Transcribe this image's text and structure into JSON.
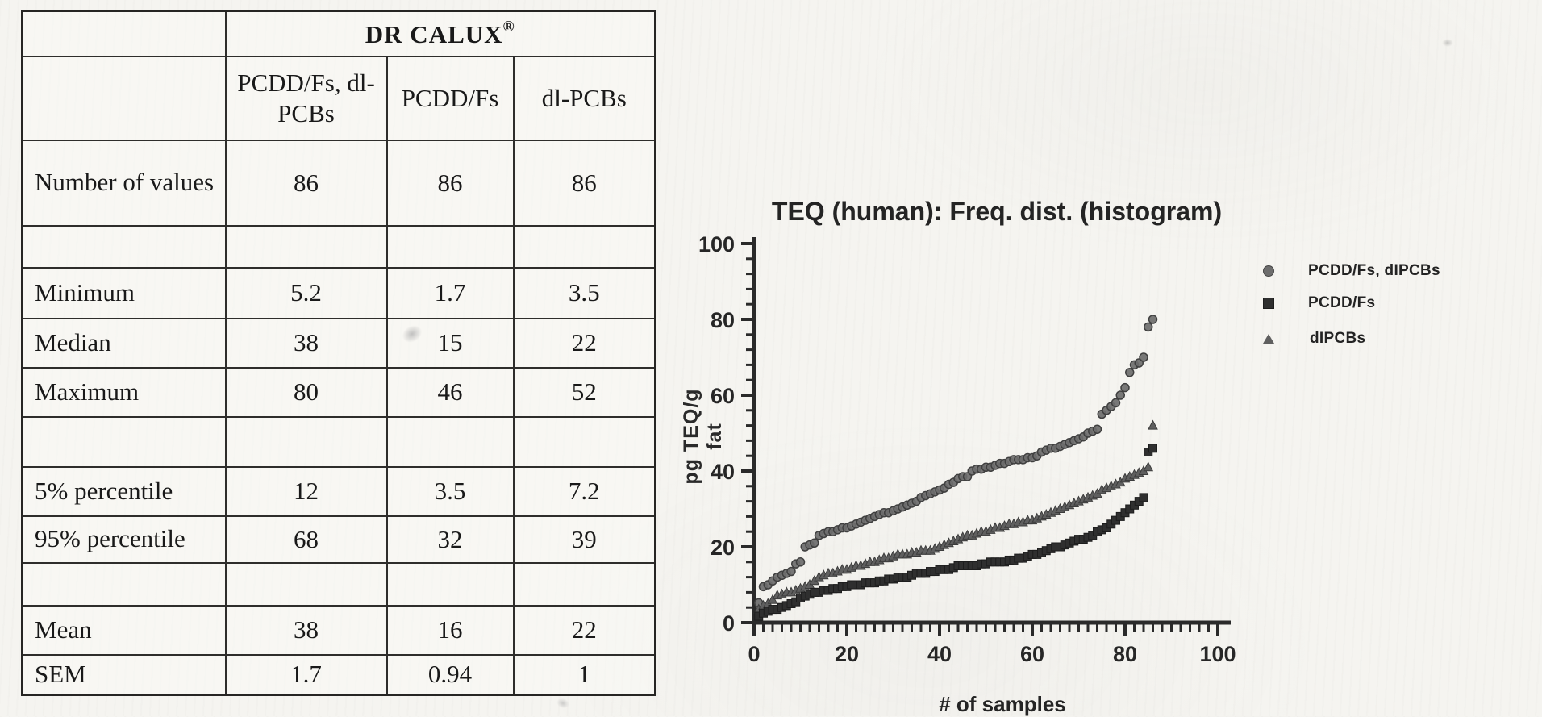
{
  "table": {
    "title": "DR CALUX",
    "title_sup": "®",
    "columns": [
      "PCDD/Fs, dl-PCBs",
      "PCDD/Fs",
      "dl-PCBs"
    ],
    "rows": [
      {
        "label": "Number of values",
        "v1": "86",
        "v2": "86",
        "v3": "86"
      },
      {
        "label": "",
        "v1": "",
        "v2": "",
        "v3": ""
      },
      {
        "label": "Minimum",
        "v1": "5.2",
        "v2": "1.7",
        "v3": "3.5"
      },
      {
        "label": "Median",
        "v1": "38",
        "v2": "15",
        "v3": "22"
      },
      {
        "label": "Maximum",
        "v1": "80",
        "v2": "46",
        "v3": "52"
      },
      {
        "label": "",
        "v1": "",
        "v2": "",
        "v3": ""
      },
      {
        "label": "5% percentile",
        "v1": "12",
        "v2": "3.5",
        "v3": "7.2"
      },
      {
        "label": "95% percentile",
        "v1": "68",
        "v2": "32",
        "v3": "39"
      },
      {
        "label": "",
        "v1": "",
        "v2": "",
        "v3": ""
      },
      {
        "label": "Mean",
        "v1": "38",
        "v2": "16",
        "v3": "22"
      },
      {
        "label": "SEM",
        "v1": "1.7",
        "v2": "0.94",
        "v3": "1"
      }
    ]
  },
  "chart_data": {
    "type": "scatter",
    "title": "TEQ (human): Freq. dist. (histogram)",
    "xlabel": "# of samples",
    "ylabel": "pg TEQ/g fat",
    "xlim": [
      0,
      100
    ],
    "ylim": [
      0,
      100
    ],
    "x_ticks": [
      0,
      20,
      40,
      60,
      80,
      100
    ],
    "y_ticks": [
      0,
      20,
      40,
      60,
      80,
      100
    ],
    "x_minor_step": 2,
    "y_minor_step": 4,
    "grid": false,
    "legend_position": "right",
    "x_description": "sample rank, x = 1..86 per series (values sorted ascending)",
    "ink_color": "#2a2a2a",
    "series": [
      {
        "name": "PCDD/Fs, dIPCBs",
        "marker": "circle",
        "color": "#6d6d6d",
        "edge": "#404040",
        "n": 86,
        "values": [
          5.2,
          9.5,
          10,
          11,
          12,
          12.5,
          13,
          13.5,
          15.5,
          16,
          20,
          20.5,
          21,
          23,
          23.5,
          24,
          24,
          24.5,
          25,
          25,
          25.5,
          26,
          26.5,
          27,
          27.5,
          28,
          28.5,
          29,
          29,
          29.5,
          30,
          30.5,
          31,
          31.5,
          32,
          33,
          33.5,
          34,
          34.5,
          35,
          35.5,
          36.5,
          37,
          38,
          38.5,
          38.5,
          40,
          40.5,
          40.5,
          41,
          41,
          41.5,
          42,
          42,
          42.5,
          43,
          43,
          43,
          43.5,
          43.5,
          44,
          45,
          45.5,
          46,
          46,
          46.5,
          47,
          47.5,
          48,
          48.5,
          49,
          50,
          50.5,
          51,
          55,
          56,
          57,
          58,
          60,
          62,
          66,
          68,
          68.5,
          70,
          78,
          80
        ]
      },
      {
        "name": "PCDD/Fs",
        "marker": "square",
        "color": "#2f2f2f",
        "edge": "#1d1d1d",
        "n": 86,
        "values": [
          1.7,
          2.5,
          3,
          3.5,
          3.5,
          4,
          4.5,
          5,
          5.5,
          6.5,
          7,
          7.5,
          8,
          8,
          8.5,
          8.5,
          9,
          9,
          9.5,
          9.5,
          10,
          10,
          10,
          10.5,
          10.5,
          10.5,
          11,
          11,
          11.5,
          11.5,
          12,
          12,
          12,
          12.5,
          13,
          13,
          13,
          13.5,
          13.5,
          14,
          14,
          14,
          14.5,
          15,
          15,
          15,
          15,
          15,
          15.5,
          15.5,
          16,
          16,
          16,
          16,
          16.5,
          16.5,
          17,
          17,
          17.5,
          18,
          18,
          18.5,
          19,
          19.5,
          20,
          20,
          20.5,
          21,
          21.5,
          22,
          22,
          22.5,
          23,
          24,
          24.5,
          25,
          26,
          27,
          28,
          29,
          30,
          31,
          32,
          33,
          45,
          46
        ]
      },
      {
        "name": "dIPCBs",
        "marker": "triangle",
        "color": "#5f5f5f",
        "edge": "#3c3c3c",
        "n": 86,
        "values": [
          3.5,
          4.5,
          5,
          6,
          7.2,
          7.5,
          8,
          8,
          8.5,
          9,
          9.5,
          10,
          11,
          12,
          12.5,
          13,
          13,
          13.5,
          14,
          14,
          14.5,
          15,
          15,
          15.5,
          16,
          16,
          16.5,
          17,
          17,
          17.5,
          18,
          18,
          18,
          18.5,
          18.5,
          19,
          19,
          19,
          19.5,
          20,
          20.5,
          21,
          21.5,
          22,
          22.5,
          23,
          23,
          23.5,
          24,
          24,
          24.5,
          25,
          25,
          25.5,
          26,
          26,
          26.5,
          26.5,
          27,
          27,
          27.5,
          28,
          28.5,
          29,
          29.5,
          30,
          30.5,
          31,
          31.5,
          32,
          32.5,
          33,
          33.5,
          34,
          35,
          35.5,
          36,
          36.5,
          37,
          38,
          38.5,
          39,
          39.5,
          40,
          41,
          52
        ]
      }
    ]
  }
}
